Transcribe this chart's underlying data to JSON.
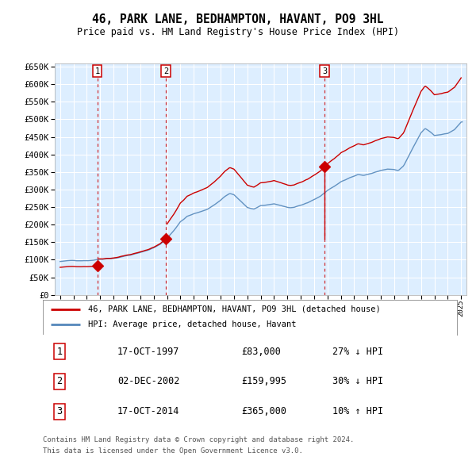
{
  "title": "46, PARK LANE, BEDHAMPTON, HAVANT, PO9 3HL",
  "subtitle": "Price paid vs. HM Land Registry's House Price Index (HPI)",
  "legend_line1": "46, PARK LANE, BEDHAMPTON, HAVANT, PO9 3HL (detached house)",
  "legend_line2": "HPI: Average price, detached house, Havant",
  "footer_line1": "Contains HM Land Registry data © Crown copyright and database right 2024.",
  "footer_line2": "This data is licensed under the Open Government Licence v3.0.",
  "transactions": [
    {
      "num": 1,
      "date": "17-OCT-1997",
      "price": 83000,
      "price_str": "£83,000",
      "pct": "27%",
      "dir": "↓",
      "year": 1997.79
    },
    {
      "num": 2,
      "date": "02-DEC-2002",
      "price": 159995,
      "price_str": "£159,995",
      "pct": "30%",
      "dir": "↓",
      "year": 2002.92
    },
    {
      "num": 3,
      "date": "17-OCT-2014",
      "price": 365000,
      "price_str": "£365,000",
      "pct": "10%",
      "dir": "↑",
      "year": 2014.79
    }
  ],
  "hpi_color": "#5588bb",
  "price_color": "#cc0000",
  "vline_color": "#cc0000",
  "plot_bg": "#ddeeff",
  "ylim": [
    0,
    660000
  ],
  "yticks": [
    0,
    50000,
    100000,
    150000,
    200000,
    250000,
    300000,
    350000,
    400000,
    450000,
    500000,
    550000,
    600000,
    650000
  ],
  "xlim_start": 1994.6,
  "xlim_end": 2025.4
}
